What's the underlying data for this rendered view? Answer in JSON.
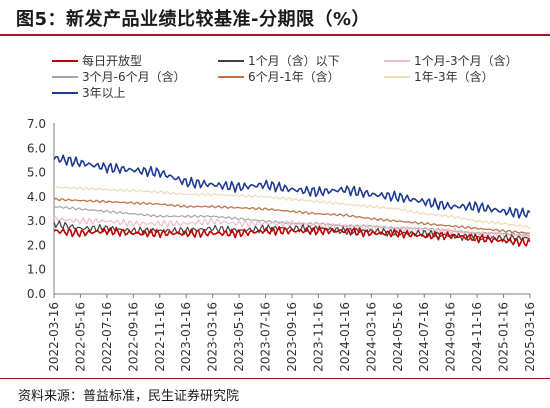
{
  "title": "图5：新发产品业绩比较基准-分期限（%）",
  "source": "资料来源：普益标准，民生证券研究院",
  "chart_data": {
    "type": "line",
    "xlabel": "",
    "ylabel": "",
    "ylim": [
      0,
      7
    ],
    "yticks": [
      "0.0",
      "1.0",
      "2.0",
      "3.0",
      "4.0",
      "5.0",
      "6.0",
      "7.0"
    ],
    "grid": false,
    "legend_position": "top",
    "xticks": [
      "2022-03-16",
      "2022-05-16",
      "2022-07-16",
      "2022-09-16",
      "2022-11-16",
      "2023-01-16",
      "2023-03-16",
      "2023-05-16",
      "2023-07-16",
      "2023-09-16",
      "2023-11-16",
      "2024-01-16",
      "2024-03-16",
      "2024-05-16",
      "2024-07-16",
      "2024-09-16",
      "2024-11-16",
      "2025-01-16",
      "2025-03-16"
    ],
    "x": [
      "2022-03",
      "2022-05",
      "2022-07",
      "2022-09",
      "2022-11",
      "2023-01",
      "2023-03",
      "2023-05",
      "2023-07",
      "2023-09",
      "2023-11",
      "2024-01",
      "2024-03",
      "2024-05",
      "2024-07",
      "2024-09",
      "2024-11",
      "2025-01",
      "2025-03"
    ],
    "series": [
      {
        "name": "每日开放型",
        "color": "#c00000",
        "width": 1.6,
        "values": [
          2.6,
          2.5,
          2.6,
          2.5,
          2.5,
          2.5,
          2.5,
          2.5,
          2.6,
          2.6,
          2.6,
          2.6,
          2.5,
          2.5,
          2.4,
          2.4,
          2.3,
          2.2,
          2.1
        ]
      },
      {
        "name": "1个月（含）以下",
        "color": "#404040",
        "width": 1.2,
        "values": [
          2.9,
          2.7,
          2.7,
          2.6,
          2.6,
          2.6,
          2.7,
          2.6,
          2.7,
          2.7,
          2.7,
          2.6,
          2.6,
          2.5,
          2.5,
          2.4,
          2.3,
          2.3,
          2.3
        ]
      },
      {
        "name": "1个月-3个月（含）",
        "color": "#f2bcc6",
        "width": 1.2,
        "values": [
          3.1,
          3.0,
          3.0,
          2.9,
          2.9,
          2.9,
          3.0,
          2.9,
          2.9,
          2.9,
          2.8,
          2.8,
          2.7,
          2.7,
          2.6,
          2.6,
          2.5,
          2.4,
          2.4
        ]
      },
      {
        "name": "3个月-6个月（含）",
        "color": "#a6a6a6",
        "width": 1.2,
        "values": [
          3.6,
          3.5,
          3.4,
          3.3,
          3.2,
          3.2,
          3.2,
          3.1,
          3.0,
          2.9,
          2.9,
          2.8,
          2.8,
          2.7,
          2.7,
          2.6,
          2.5,
          2.5,
          2.4
        ]
      },
      {
        "name": "6个月-1年（含）",
        "color": "#c0744a",
        "width": 1.3,
        "values": [
          3.9,
          3.85,
          3.8,
          3.75,
          3.7,
          3.6,
          3.6,
          3.55,
          3.5,
          3.4,
          3.3,
          3.25,
          3.1,
          3.0,
          2.9,
          2.8,
          2.7,
          2.6,
          2.5
        ]
      },
      {
        "name": "1年-3年（含）",
        "color": "#f0dcbc",
        "width": 1.3,
        "values": [
          4.4,
          4.35,
          4.3,
          4.25,
          4.2,
          4.1,
          4.1,
          4.05,
          4.0,
          3.9,
          3.8,
          3.7,
          3.6,
          3.5,
          3.3,
          3.2,
          3.0,
          2.9,
          2.75
        ]
      },
      {
        "name": "3年以上",
        "color": "#1f3a93",
        "width": 1.6,
        "values": [
          5.6,
          5.4,
          5.2,
          5.1,
          5.0,
          4.6,
          4.5,
          4.4,
          4.5,
          4.3,
          4.2,
          4.3,
          4.1,
          4.0,
          3.8,
          3.6,
          3.6,
          3.4,
          3.3
        ]
      }
    ]
  }
}
